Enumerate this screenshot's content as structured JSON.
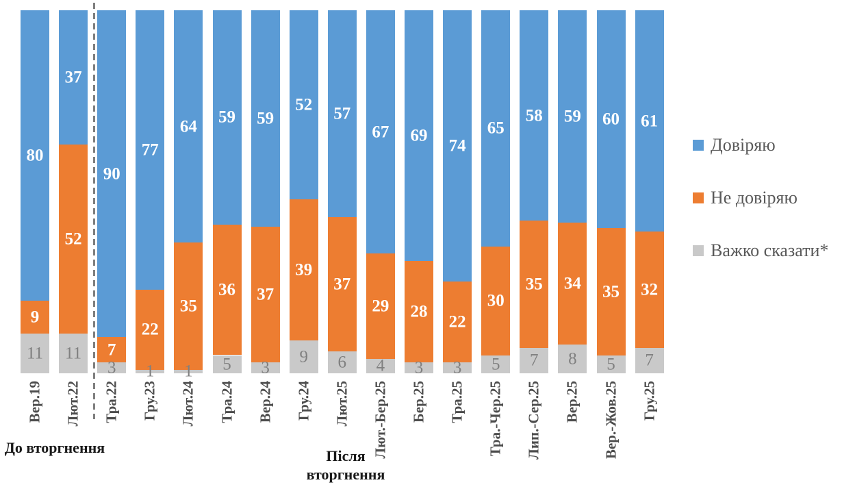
{
  "chart_data": {
    "type": "bar",
    "subtype": "stacked-100-percent",
    "title": "",
    "xlabel": "",
    "ylabel": "",
    "ylim": [
      0,
      100
    ],
    "grid": false,
    "legend_position": "right",
    "categories": [
      "Вер.19",
      "Лют.22",
      "Тра.22",
      "Гру.23",
      "Лют.24",
      "Тра.24",
      "Вер.24",
      "Гру.24",
      "Лют.25",
      "Лют.-Бер.25",
      "Бер.25",
      "Тра.25",
      "Тра.-Чер.25",
      "Лип.-Сер.25",
      "Вер.25",
      "Вер.-Жов.25",
      "Гру.25"
    ],
    "series": [
      {
        "name": "Довіряю",
        "color": "#5B9BD5",
        "label_style": "light",
        "values": [
          80,
          37,
          90,
          77,
          64,
          59,
          59,
          52,
          57,
          67,
          69,
          74,
          65,
          58,
          59,
          60,
          61
        ]
      },
      {
        "name": "Не довіряю",
        "color": "#ED7D31",
        "label_style": "light",
        "values": [
          9,
          52,
          7,
          22,
          35,
          36,
          37,
          39,
          37,
          29,
          28,
          22,
          30,
          35,
          34,
          35,
          32
        ]
      },
      {
        "name": "Важко сказати*",
        "color": "#C9C9C9",
        "label_style": "dark",
        "values": [
          11,
          11,
          3,
          1,
          1,
          5,
          3,
          9,
          6,
          4,
          3,
          3,
          5,
          7,
          8,
          5,
          7
        ]
      }
    ],
    "annotations": {
      "before_invasion": "До вторгнення",
      "after_invasion": "Після вторгнення"
    },
    "divider_after_category_index": 1
  },
  "colors": {
    "trust": "#5B9BD5",
    "no_trust": "#ED7D31",
    "hard_to_say": "#C9C9C9",
    "divider": "#7f7f7f",
    "axis_text": "#4d4d4d",
    "legend_text": "#595959"
  }
}
